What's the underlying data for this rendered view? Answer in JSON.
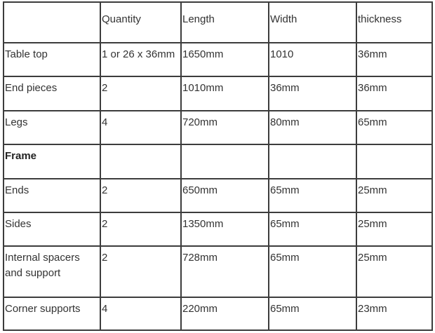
{
  "table": {
    "header": [
      "Quantity",
      "Length",
      "Width",
      "thickness"
    ],
    "rows": [
      [
        "Table top",
        "1 or 26 x 36mm",
        "1650mm",
        "1010",
        "36mm"
      ],
      [
        "End pieces",
        "2",
        "1010mm",
        "36mm",
        "36mm"
      ],
      [
        "Legs",
        "4",
        "720mm",
        "80mm",
        "65mm"
      ],
      [
        "Frame"
      ],
      [
        "Ends",
        "2",
        "650mm",
        "65mm",
        "25mm"
      ],
      [
        "Sides",
        "2",
        "1350mm",
        "65mm",
        "25mm"
      ],
      [
        "Internal spacers and support",
        "2",
        "728mm",
        "65mm",
        "25mm"
      ],
      [
        "Corner supports",
        "4",
        "220mm",
        "65mm",
        "23mm"
      ]
    ]
  }
}
